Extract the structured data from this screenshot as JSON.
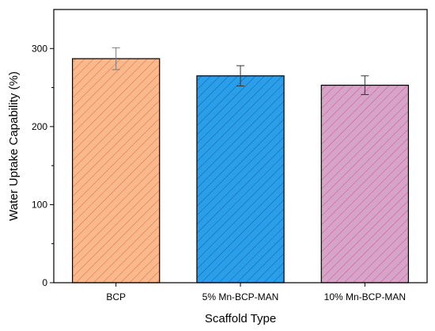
{
  "chart_data": {
    "type": "bar",
    "xlabel": "Scaffold Type",
    "ylabel": "Water Uptake Capability (%)",
    "ylim": [
      0,
      350
    ],
    "yticks": [
      0,
      100,
      200,
      300
    ],
    "categories": [
      "BCP",
      "5% Mn-BCP-MAN",
      "10% Mn-BCP-MAN"
    ],
    "values": [
      287,
      265,
      253
    ],
    "errors": [
      14,
      13,
      12
    ],
    "colors": {
      "fills": [
        "#f9b98a",
        "#2a9ee8",
        "#d6a3c9"
      ],
      "hatches": [
        "#e96a5a",
        "#1466b0",
        "#d65a8a"
      ],
      "error_bars": [
        "#7a7a7a",
        "#333333",
        "#333333"
      ]
    },
    "grid": false,
    "legend": "none"
  }
}
